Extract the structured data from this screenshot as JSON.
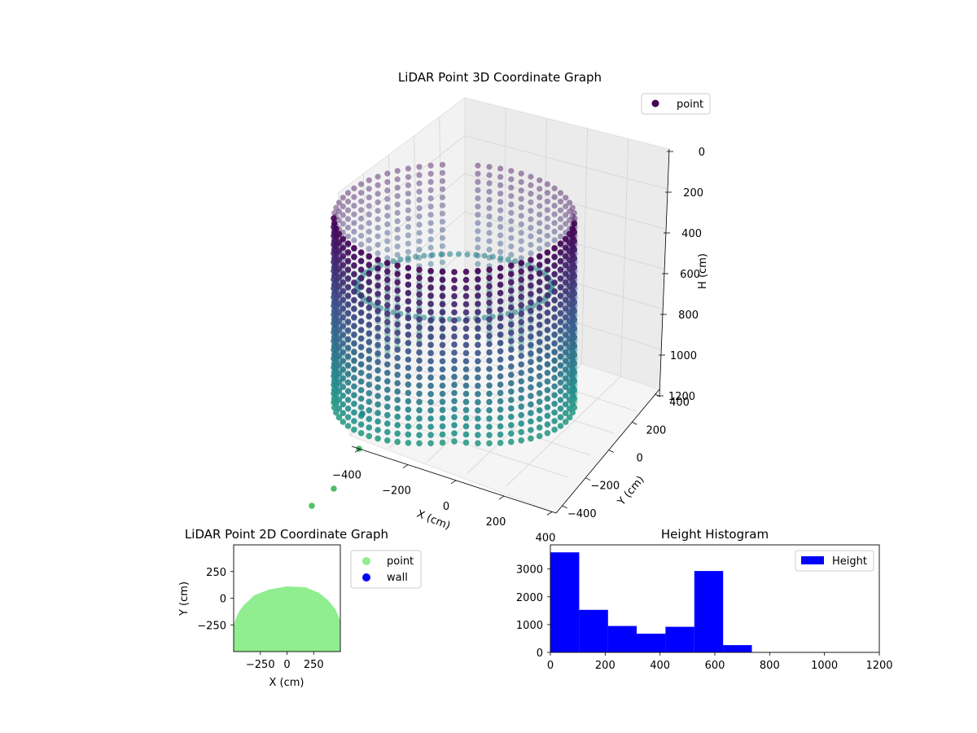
{
  "chart_data": [
    {
      "type": "scatter",
      "projection": "3d",
      "title": "LiDAR Point 3D Coordinate Graph",
      "xlabel": "X (cm)",
      "ylabel": "Y (cm)",
      "zlabel": "H (cm)",
      "xticks": [
        "−400",
        "−200",
        "0",
        "200",
        "400"
      ],
      "yticks": [
        "−400",
        "−200",
        "0",
        "200",
        "400"
      ],
      "zticks": [
        "0",
        "200",
        "400",
        "600",
        "800",
        "1000",
        "1200"
      ],
      "xlim": [
        -450,
        450
      ],
      "ylim": [
        -450,
        450
      ],
      "zlim": [
        1200,
        0
      ],
      "colormap": "viridis",
      "shape": "cylindrical ring of scan points, radius approx. 400 cm, heights approx. 0 to 750 cm, with a gap in the far wall",
      "legend": [
        {
          "label": "point",
          "color": "#440154"
        }
      ],
      "legend_position": "upper right",
      "grid": true
    },
    {
      "type": "scatter",
      "title": "LiDAR Point 2D Coordinate Graph",
      "xlabel": "X (cm)",
      "ylabel": "Y (cm)",
      "xticks": [
        "−250",
        "0",
        "250"
      ],
      "yticks": [
        "−250",
        "0",
        "250"
      ],
      "xlim": [
        -500,
        500
      ],
      "ylim": [
        -500,
        500
      ],
      "series": [
        {
          "name": "point",
          "color": "#90ee90"
        },
        {
          "name": "wall",
          "color": "#0000ff"
        }
      ],
      "legend_position": "outside upper right",
      "grid": false
    },
    {
      "type": "bar",
      "subtype": "histogram",
      "title": "Height Histogram",
      "xticks": [
        "0",
        "200",
        "400",
        "600",
        "800",
        "1000",
        "1200"
      ],
      "yticks": [
        "0",
        "1000",
        "2000",
        "3000"
      ],
      "xlim": [
        0,
        1200
      ],
      "ylim": [
        0,
        3870
      ],
      "bin_edges": [
        0,
        105,
        210,
        315,
        420,
        525,
        630,
        735
      ],
      "series": [
        {
          "name": "Height",
          "color": "#0000ff",
          "values": [
            3600,
            1530,
            950,
            670,
            920,
            2930,
            260
          ]
        }
      ],
      "legend_position": "upper right",
      "grid": false
    }
  ]
}
